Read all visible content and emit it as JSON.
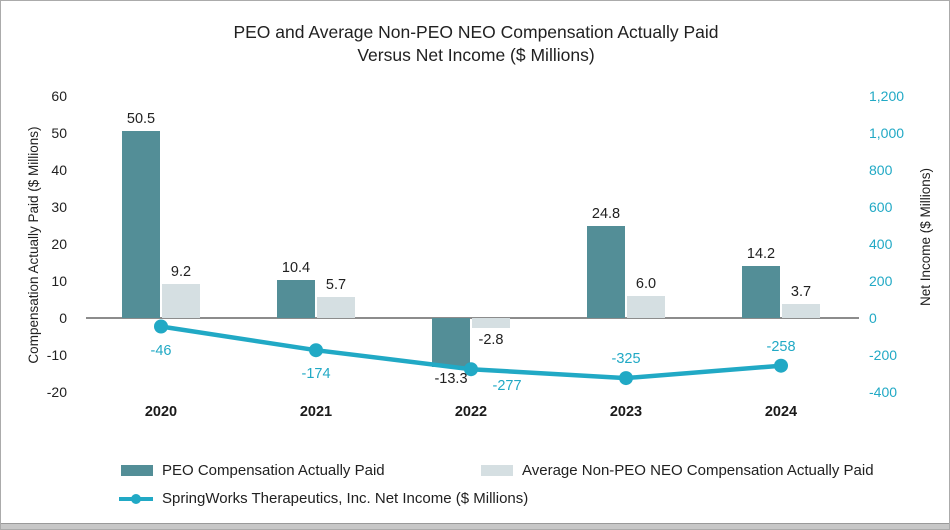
{
  "accent_colors": {
    "peo_bar": "#538E97",
    "non_peo_bar": "#D5DFE2",
    "net_income_line": "#21A9C5",
    "zero_line": "#8C8C8C"
  },
  "chart_data": {
    "type": "bar",
    "subtype": "grouped bars with line overlay, dual y-axes",
    "title": "PEO and Average Non-PEO NEO Compensation Actually Paid Versus Net Income ($ Millions)",
    "title_lines": [
      "PEO and Average Non-PEO NEO Compensation Actually Paid",
      "Versus Net Income ($ Millions)"
    ],
    "categories": [
      "2020",
      "2021",
      "2022",
      "2023",
      "2024"
    ],
    "series": [
      {
        "name": "PEO Compensation Actually Paid",
        "type": "bar",
        "axis": "left",
        "color": "#538E97",
        "values": [
          50.5,
          10.4,
          -13.3,
          24.8,
          14.2
        ],
        "labels": [
          "50.5",
          "10.4",
          "-13.3",
          "24.8",
          "14.2"
        ]
      },
      {
        "name": "Average Non-PEO NEO Compensation Actually Paid",
        "type": "bar",
        "axis": "left",
        "color": "#D5DFE2",
        "values": [
          9.2,
          5.7,
          -2.8,
          6.0,
          3.7
        ],
        "labels": [
          "9.2",
          "5.7",
          "-2.8",
          "6.0",
          "3.7"
        ]
      },
      {
        "name": "SpringWorks Therapeutics, Inc. Net Income ($ Millions)",
        "type": "line",
        "axis": "right",
        "color": "#21A9C5",
        "values": [
          -46,
          -174,
          -277,
          -325,
          -258
        ],
        "labels": [
          "-46",
          "-174",
          "-277",
          "-325",
          "-258"
        ],
        "label_positions": [
          "below",
          "below",
          "below-right",
          "above",
          "above"
        ]
      }
    ],
    "left_axis": {
      "label": "Compensation Actually Paid ($ Millions)",
      "min": -20,
      "max": 60,
      "tick_interval": 10,
      "ticks": [
        "60",
        "50",
        "40",
        "30",
        "20",
        "10",
        "0",
        "-10",
        "-20"
      ],
      "color": "#212121"
    },
    "right_axis": {
      "label": "Net Income ($ Millions)",
      "min": -400,
      "max": 1200,
      "tick_interval": 200,
      "ticks": [
        "1,200",
        "1,000",
        "800",
        "600",
        "400",
        "200",
        "0",
        "-200",
        "-400"
      ],
      "color": "#21A9C5"
    },
    "grid": "off",
    "legend_position": "bottom-left, two rows"
  }
}
